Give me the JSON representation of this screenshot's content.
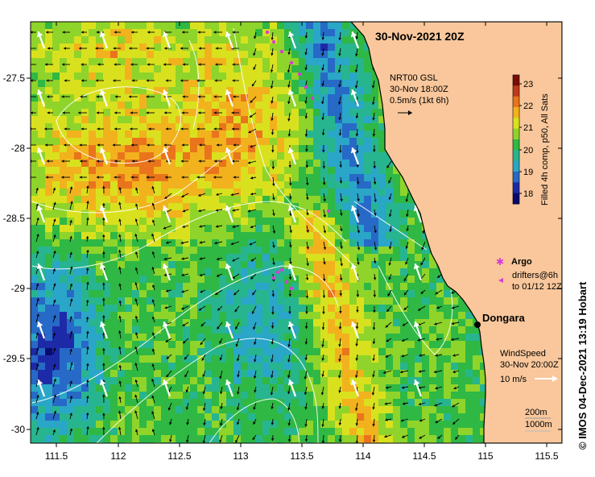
{
  "title": "30-Nov-2021 20Z",
  "credit": "©  IMOS 04-Dec-2021 13:19 Hobart",
  "axes": {
    "x_ticks": [
      "111.5",
      "112",
      "112.5",
      "113",
      "113.5",
      "114",
      "114.5",
      "115",
      "115.5"
    ],
    "y_ticks": [
      "-27.5",
      "-28",
      "-28.5",
      "-29",
      "-29.5",
      "-30"
    ]
  },
  "colorbar": {
    "label": "Filled 4h comp, p50, All Sats",
    "ticks": [
      "23",
      "22",
      "21",
      "20",
      "19",
      "18"
    ],
    "colors": [
      "#7a0d06",
      "#c0391a",
      "#e9741c",
      "#f2b21d",
      "#d9e11f",
      "#8fd42a",
      "#2fb844",
      "#27b58f",
      "#2aa6c8",
      "#2769c6",
      "#1d2aa8",
      "#0a0a6e"
    ]
  },
  "current_legend": {
    "line1": "NRT00 GSL",
    "line2": "30-Nov 18:00Z",
    "line3": "0.5m/s (1kt 6h)"
  },
  "argo": {
    "symbol": "✱",
    "label": "Argo",
    "color": "#d63cd6"
  },
  "drifters": {
    "line1": "drifters@6h",
    "line2": "to 01/12 12Z"
  },
  "place": {
    "name": "Dongara"
  },
  "wind_legend": {
    "line1": "WindSpeed",
    "line2": "30-Nov 20:00Z",
    "line3": "10 m/s"
  },
  "isobath": {
    "line1": "200m",
    "line2": "1000m"
  },
  "colors": {
    "land": "#f9c79b",
    "coast": "#000000",
    "contour": "#ffffff",
    "current_arrow": "#000000",
    "wind_arrow": "#ffffff"
  }
}
